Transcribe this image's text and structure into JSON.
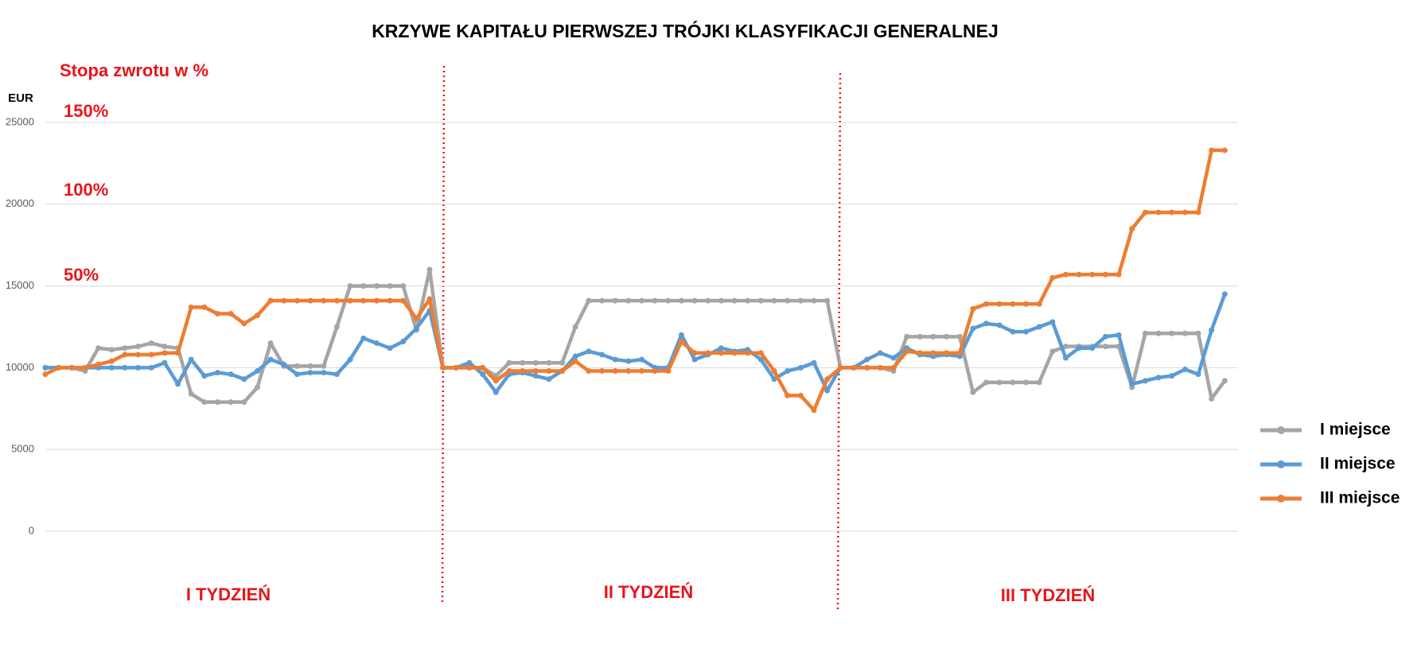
{
  "chart_data": {
    "type": "line",
    "title": "KRZYWE KAPITAŁU PIERWSZEJ TRÓJKI KLASYFIKACJI GENERALNEJ",
    "y_label": "EUR",
    "annotations": {
      "return_label": "Stopa zwrotu w %",
      "pct150": "150%",
      "pct100": "100%",
      "pct50": "50%",
      "week1": "I TYDZIEŃ",
      "week2": "II TYDZIEŃ",
      "week3": "III TYDZIEŃ"
    },
    "ylim": [
      0,
      25000
    ],
    "yticks": [
      0,
      5000,
      10000,
      15000,
      20000,
      25000
    ],
    "grid": true,
    "legend": "right",
    "series": [
      {
        "name": "I miejsce",
        "color": "#a5a5a5",
        "values": [
          10000,
          10000,
          10000,
          9800,
          11200,
          11100,
          11200,
          11300,
          11500,
          11300,
          11200,
          8400,
          7900,
          7900,
          7900,
          7900,
          8800,
          11500,
          10100,
          10100,
          10100,
          10100,
          12500,
          15000,
          15000,
          15000,
          15000,
          15000,
          12300,
          16000,
          10000,
          10000,
          10000,
          10000,
          9500,
          10300,
          10300,
          10300,
          10300,
          10300,
          12500,
          14100,
          14100,
          14100,
          14100,
          14100,
          14100,
          14100,
          14100,
          14100,
          14100,
          14100,
          14100,
          14100,
          14100,
          14100,
          14100,
          14100,
          14100,
          14100,
          10000,
          10000,
          10000,
          10000,
          9800,
          11900,
          11900,
          11900,
          11900,
          11900,
          8500,
          9100,
          9100,
          9100,
          9100,
          9100,
          11000,
          11300,
          11300,
          11300,
          11300,
          11300,
          8800,
          12100,
          12100,
          12100,
          12100,
          12100,
          8100,
          9200
        ]
      },
      {
        "name": "II miejsce",
        "color": "#5b9bd5",
        "values": [
          10000,
          10000,
          10000,
          10000,
          10000,
          10000,
          10000,
          10000,
          10000,
          10300,
          9000,
          10500,
          9500,
          9700,
          9600,
          9300,
          9800,
          10500,
          10200,
          9600,
          9700,
          9700,
          9600,
          10500,
          11800,
          11500,
          11200,
          11600,
          12400,
          13500,
          10000,
          10000,
          10300,
          9600,
          8500,
          9600,
          9700,
          9500,
          9300,
          9800,
          10700,
          11000,
          10800,
          10500,
          10400,
          10500,
          10000,
          10000,
          12000,
          10500,
          10800,
          11200,
          11000,
          11100,
          10500,
          9300,
          9800,
          10000,
          10300,
          8600,
          10000,
          10000,
          10500,
          10900,
          10600,
          11200,
          10800,
          10700,
          10800,
          10700,
          12400,
          12700,
          12600,
          12200,
          12200,
          12500,
          12800,
          10600,
          11200,
          11200,
          11900,
          12000,
          9000,
          9200,
          9400,
          9500,
          9900,
          9600,
          12300,
          14500
        ]
      },
      {
        "name": "III miejsce",
        "color": "#ed7d31",
        "values": [
          9600,
          10000,
          10000,
          10000,
          10200,
          10400,
          10800,
          10800,
          10800,
          10900,
          10900,
          13700,
          13700,
          13300,
          13300,
          12700,
          13200,
          14100,
          14100,
          14100,
          14100,
          14100,
          14100,
          14100,
          14100,
          14100,
          14100,
          14100,
          13000,
          14200,
          10000,
          10000,
          10000,
          10000,
          9200,
          9800,
          9800,
          9800,
          9800,
          9800,
          10400,
          9800,
          9800,
          9800,
          9800,
          9800,
          9800,
          9800,
          11600,
          10900,
          10900,
          10900,
          10900,
          10900,
          10900,
          9800,
          8300,
          8300,
          7400,
          9300,
          10000,
          10000,
          10000,
          10000,
          10000,
          11000,
          10900,
          10900,
          10900,
          10900,
          13600,
          13900,
          13900,
          13900,
          13900,
          13900,
          15500,
          15700,
          15700,
          15700,
          15700,
          15700,
          18500,
          19500,
          19500,
          19500,
          19500,
          19500,
          23300,
          23300
        ]
      }
    ]
  }
}
